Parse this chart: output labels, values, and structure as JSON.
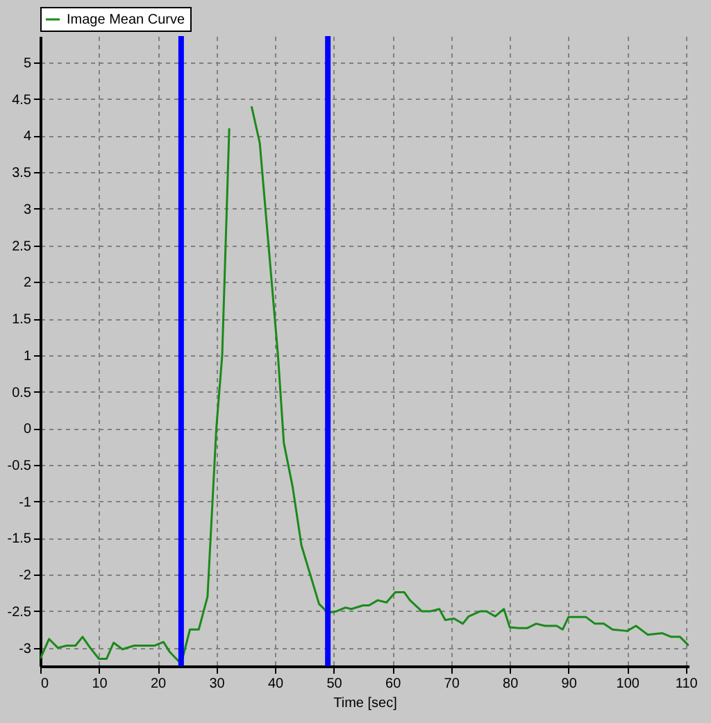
{
  "chart_data": {
    "type": "line",
    "xlabel": "Time [sec]",
    "x": [
      0,
      1.5,
      3,
      4.5,
      6,
      7.2,
      8.5,
      10,
      11.3,
      12.5,
      14,
      16,
      19.5,
      21,
      22,
      24,
      25.5,
      27,
      28.5,
      30,
      31,
      32.2,
      33.5,
      35,
      36,
      37.4,
      40.5,
      41.5,
      43,
      44.5,
      46,
      47.5,
      49,
      50.5,
      52,
      53,
      55,
      56,
      57.5,
      59,
      60.5,
      62,
      63,
      65,
      66.5,
      68,
      69,
      70.5,
      72,
      73,
      75,
      76,
      77.5,
      79,
      80,
      81.5,
      83,
      84.5,
      86,
      88,
      89,
      90,
      93,
      94.5,
      96,
      97.5,
      100,
      101.5,
      103.5,
      106,
      107.5,
      109,
      110.5
    ],
    "series": [
      {
        "name": "Image Mean Curve",
        "color": "#1a8a1a",
        "values": [
          -3.15,
          -2.88,
          -3.0,
          -2.97,
          -2.97,
          -2.85,
          -3.0,
          -3.15,
          -3.15,
          -2.93,
          -3.02,
          -2.97,
          -2.97,
          -2.92,
          -3.05,
          -3.22,
          -2.75,
          -2.75,
          -2.3,
          0,
          1.0,
          4.1,
          null,
          null,
          4.4,
          3.9,
          1.0,
          -0.2,
          -0.8,
          -1.6,
          -2.0,
          -2.4,
          -2.52,
          -2.5,
          -2.45,
          -2.47,
          -2.42,
          -2.42,
          -2.35,
          -2.38,
          -2.24,
          -2.24,
          -2.35,
          -2.5,
          -2.5,
          -2.47,
          -2.62,
          -2.6,
          -2.67,
          -2.57,
          -2.5,
          -2.5,
          -2.57,
          -2.47,
          -2.72,
          -2.73,
          -2.73,
          -2.67,
          -2.7,
          -2.7,
          -2.75,
          -2.58,
          -2.58,
          -2.67,
          -2.67,
          -2.75,
          -2.77,
          -2.7,
          -2.82,
          -2.8,
          -2.85,
          -2.85,
          -2.97
        ]
      }
    ],
    "xlim": [
      0,
      110.5
    ],
    "ylim": [
      -3.25,
      5.36
    ],
    "xticks": [
      0,
      10,
      20,
      30,
      40,
      50,
      60,
      70,
      80,
      90,
      100,
      110
    ],
    "yticks": [
      -3,
      -2.5,
      -2,
      -1.5,
      -1,
      -0.5,
      0,
      0.5,
      1,
      1.5,
      2,
      2.5,
      3,
      3.5,
      4,
      4.5,
      5
    ],
    "ref_lines": [
      {
        "axis": "x",
        "value": 24,
        "color": "#0000ff"
      },
      {
        "axis": "x",
        "value": 49,
        "color": "#0000ff"
      }
    ],
    "grid": true,
    "legend": "top",
    "line_style": "solid",
    "marker": "none"
  }
}
